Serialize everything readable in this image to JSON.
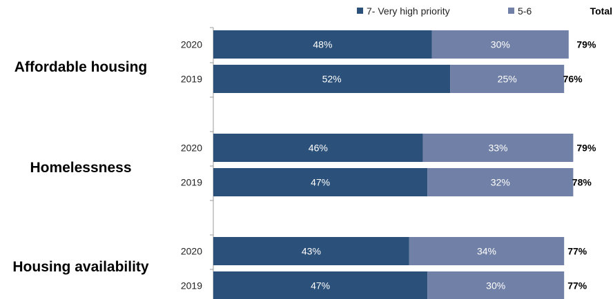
{
  "chart_data": {
    "type": "bar",
    "orientation": "horizontal",
    "stacked": true,
    "categories": [
      "Affordable housing",
      "Homelessness",
      "Housing availability"
    ],
    "years": [
      "2020",
      "2019"
    ],
    "series": [
      {
        "name": "7- Very high priority",
        "color": "#2b5079",
        "values": [
          [
            48,
            52
          ],
          [
            46,
            47
          ],
          [
            43,
            47
          ]
        ]
      },
      {
        "name": "5-6",
        "color": "#7180a6",
        "values": [
          [
            30,
            25
          ],
          [
            33,
            32
          ],
          [
            34,
            30
          ]
        ]
      }
    ],
    "total_label": "Total",
    "totals": [
      [
        79,
        76
      ],
      [
        79,
        78
      ],
      [
        77,
        77
      ]
    ],
    "value_suffix": "%",
    "legend_position": "top-right",
    "grid": false,
    "xlim": [
      0,
      100
    ]
  }
}
